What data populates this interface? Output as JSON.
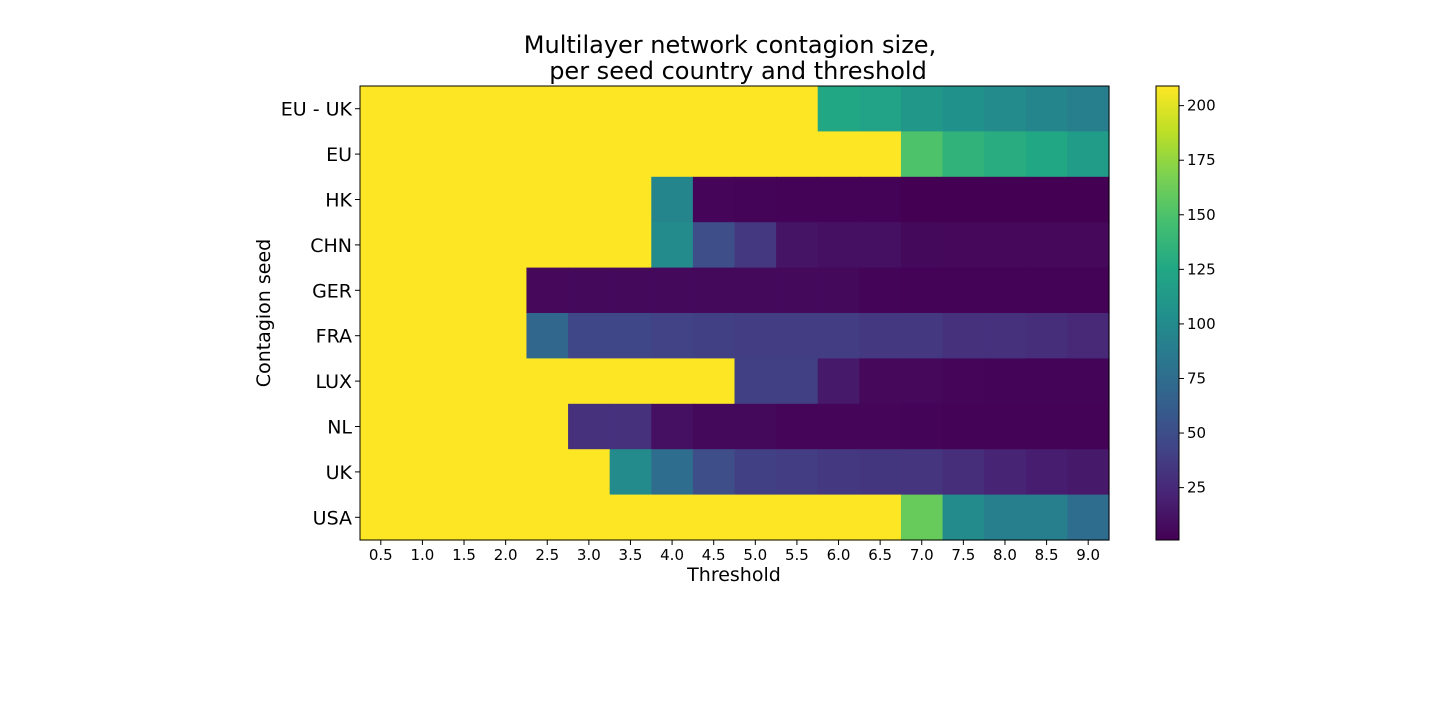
{
  "chart_data": {
    "type": "heatmap",
    "title_lines": [
      "Multilayer network contagion size,",
      "per seed country and threshold"
    ],
    "xlabel": "Threshold",
    "ylabel": "Contagion seed",
    "x": [
      "0.5",
      "1.0",
      "1.5",
      "2.0",
      "2.5",
      "3.0",
      "3.5",
      "4.0",
      "4.5",
      "5.0",
      "5.5",
      "6.0",
      "6.5",
      "7.0",
      "7.5",
      "8.0",
      "8.5",
      "9.0"
    ],
    "y": [
      "EU - UK",
      "EU",
      "HK",
      "CHN",
      "GER",
      "FRA",
      "LUX",
      "NL",
      "UK",
      "USA"
    ],
    "values": [
      [
        209,
        209,
        209,
        209,
        209,
        209,
        209,
        209,
        209,
        209,
        209,
        125,
        120,
        110,
        105,
        100,
        95,
        90
      ],
      [
        209,
        209,
        209,
        209,
        209,
        209,
        209,
        209,
        209,
        209,
        209,
        209,
        209,
        150,
        135,
        130,
        125,
        115
      ],
      [
        209,
        209,
        209,
        209,
        209,
        209,
        209,
        95,
        4,
        3,
        2,
        2,
        2,
        1,
        1,
        1,
        1,
        1
      ],
      [
        209,
        209,
        209,
        209,
        209,
        209,
        209,
        100,
        50,
        35,
        12,
        10,
        10,
        6,
        5,
        5,
        5,
        5
      ],
      [
        209,
        209,
        209,
        209,
        5,
        6,
        6,
        6,
        6,
        6,
        6,
        6,
        3,
        2,
        2,
        2,
        2,
        2
      ],
      [
        209,
        209,
        209,
        209,
        70,
        45,
        45,
        42,
        40,
        38,
        38,
        38,
        35,
        35,
        30,
        30,
        28,
        25
      ],
      [
        209,
        209,
        209,
        209,
        209,
        209,
        209,
        209,
        209,
        40,
        40,
        15,
        5,
        5,
        4,
        3,
        3,
        3
      ],
      [
        209,
        209,
        209,
        209,
        209,
        30,
        30,
        10,
        6,
        6,
        4,
        4,
        4,
        3,
        2,
        2,
        2,
        2
      ],
      [
        209,
        209,
        209,
        209,
        209,
        209,
        100,
        75,
        50,
        40,
        38,
        35,
        33,
        32,
        28,
        22,
        18,
        15
      ],
      [
        209,
        209,
        209,
        209,
        209,
        209,
        209,
        209,
        209,
        209,
        209,
        209,
        209,
        160,
        100,
        90,
        90,
        75
      ]
    ],
    "colorbar": {
      "colormap": "viridis",
      "min": 1,
      "max": 209,
      "ticks": [
        25,
        50,
        75,
        100,
        125,
        150,
        175,
        200
      ]
    }
  }
}
